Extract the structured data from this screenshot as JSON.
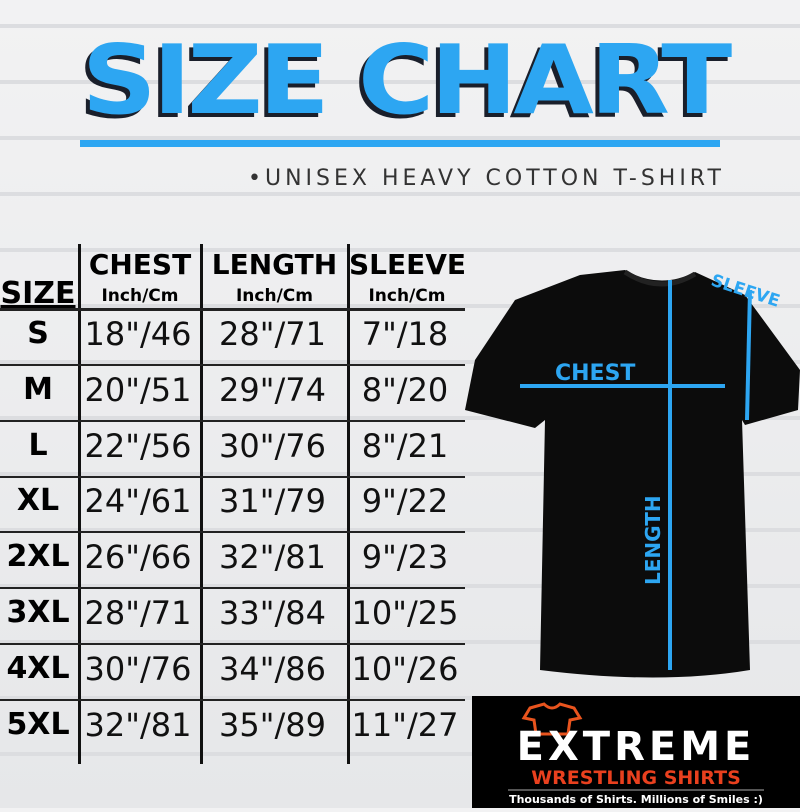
{
  "title": "SIZE CHART",
  "subtitle": "•UNISEX HEAVY COTTON T-SHIRT",
  "table": {
    "size_header": "SIZE",
    "columns": [
      {
        "label": "CHEST",
        "unit": "Inch/Cm"
      },
      {
        "label": "LENGTH",
        "unit": "Inch/Cm"
      },
      {
        "label": "SLEEVE",
        "unit": "Inch/Cm"
      }
    ],
    "rows": [
      {
        "size": "S",
        "values": [
          "18\"/46",
          "28\"/71",
          "7\"/18"
        ]
      },
      {
        "size": "M",
        "values": [
          "20\"/51",
          "29\"/74",
          "8\"/20"
        ]
      },
      {
        "size": "L",
        "values": [
          "22\"/56",
          "30\"/76",
          "8\"/21"
        ]
      },
      {
        "size": "XL",
        "values": [
          "24\"/61",
          "31\"/79",
          "9\"/22"
        ]
      },
      {
        "size": "2XL",
        "values": [
          "26\"/66",
          "32\"/81",
          "9\"/23"
        ]
      },
      {
        "size": "3XL",
        "values": [
          "28\"/71",
          "33\"/84",
          "10\"/25"
        ]
      },
      {
        "size": "4XL",
        "values": [
          "30\"/76",
          "34\"/86",
          "10\"/26"
        ]
      },
      {
        "size": "5XL",
        "values": [
          "32\"/81",
          "35\"/89",
          "11\"/27"
        ]
      }
    ]
  },
  "diagram": {
    "chest": "CHEST",
    "length": "LENGTH",
    "sleeve": "SLEEVE",
    "accent": "#2da6f2"
  },
  "logo": {
    "brand": "EXTREME",
    "line2": "WRESTLING SHIRTS",
    "tagline": "Thousands of Shirts. Millions of Smiles :)"
  }
}
